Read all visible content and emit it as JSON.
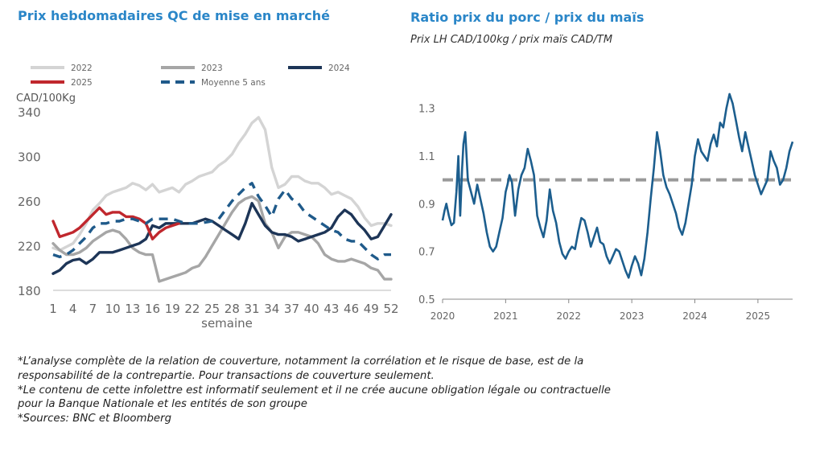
{
  "footnotes": [
    "*L’analyse complète de la relation de couverture, notamment la corrélation et le risque de base, est de la",
    "responsabilité de la contrepartie. Pour transactions de couverture seulement.",
    "*Le contenu de cette infolettre est informatif seulement et il ne crée aucune obligation légale ou contractuelle",
    "pour la Banque Nationale et les entités de son groupe",
    "*Sources: BNC et Bloomberg"
  ],
  "chart_data": [
    {
      "type": "line",
      "title": "Prix hebdomadaires QC de mise en marché",
      "xlabel": "semaine",
      "ylabel": "CAD/100Kg",
      "ylim": [
        180,
        340
      ],
      "xlim": [
        1,
        52
      ],
      "yticks": [
        180,
        220,
        260,
        300,
        340
      ],
      "xticks": [
        1,
        4,
        7,
        10,
        13,
        16,
        19,
        22,
        25,
        28,
        31,
        34,
        37,
        40,
        43,
        46,
        49,
        52
      ],
      "grid": false,
      "legend_position": "top",
      "series": [
        {
          "name": "2022",
          "color": "#d4d4d4",
          "dash": false,
          "x": [
            1,
            2,
            3,
            4,
            5,
            6,
            7,
            8,
            9,
            10,
            11,
            12,
            13,
            14,
            15,
            16,
            17,
            18,
            19,
            20,
            21,
            22,
            23,
            24,
            25,
            26,
            27,
            28,
            29,
            30,
            31,
            32,
            33,
            34,
            35,
            36,
            37,
            38,
            39,
            40,
            41,
            42,
            43,
            44,
            45,
            46,
            47,
            48,
            49,
            50,
            51,
            52
          ],
          "values": [
            218,
            216,
            219,
            222,
            230,
            240,
            252,
            258,
            265,
            268,
            270,
            272,
            276,
            274,
            270,
            275,
            268,
            270,
            272,
            268,
            275,
            278,
            282,
            284,
            286,
            292,
            296,
            302,
            312,
            320,
            330,
            335,
            324,
            290,
            272,
            275,
            282,
            282,
            278,
            276,
            276,
            272,
            266,
            268,
            265,
            262,
            255,
            245,
            238,
            240,
            240,
            238
          ]
        },
        {
          "name": "2023",
          "color": "#a6a6a6",
          "dash": false,
          "x": [
            1,
            2,
            3,
            4,
            5,
            6,
            7,
            8,
            9,
            10,
            11,
            12,
            13,
            14,
            15,
            16,
            17,
            18,
            19,
            20,
            21,
            22,
            23,
            24,
            25,
            26,
            27,
            28,
            29,
            30,
            31,
            32,
            33,
            34,
            35,
            36,
            37,
            38,
            39,
            40,
            41,
            42,
            43,
            44,
            45,
            46,
            47,
            48,
            49,
            50,
            51,
            52
          ],
          "values": [
            222,
            216,
            212,
            212,
            214,
            218,
            224,
            228,
            232,
            234,
            232,
            226,
            218,
            214,
            212,
            212,
            188,
            190,
            192,
            194,
            196,
            200,
            202,
            210,
            220,
            230,
            240,
            250,
            258,
            262,
            264,
            260,
            240,
            232,
            218,
            228,
            232,
            232,
            230,
            228,
            222,
            212,
            208,
            206,
            206,
            208,
            206,
            204,
            200,
            198,
            190,
            190
          ]
        },
        {
          "name": "2024",
          "color": "#1d3557",
          "dash": false,
          "x": [
            1,
            2,
            3,
            4,
            5,
            6,
            7,
            8,
            9,
            10,
            11,
            12,
            13,
            14,
            15,
            16,
            17,
            18,
            19,
            20,
            21,
            22,
            23,
            24,
            25,
            26,
            27,
            28,
            29,
            30,
            31,
            32,
            33,
            34,
            35,
            36,
            37,
            38,
            39,
            40,
            41,
            42,
            43,
            44,
            45,
            46,
            47,
            48,
            49,
            50,
            51,
            52
          ],
          "values": [
            195,
            198,
            204,
            207,
            208,
            204,
            208,
            214,
            214,
            214,
            216,
            218,
            220,
            222,
            226,
            238,
            236,
            240,
            240,
            240,
            240,
            240,
            242,
            244,
            242,
            238,
            234,
            230,
            226,
            240,
            258,
            248,
            238,
            232,
            230,
            230,
            228,
            224,
            226,
            228,
            230,
            232,
            236,
            246,
            252,
            248,
            240,
            234,
            226,
            228,
            238,
            248
          ]
        },
        {
          "name": "2025",
          "color": "#c0272d",
          "dash": false,
          "x": [
            1,
            2,
            3,
            4,
            5,
            6,
            7,
            8,
            9,
            10,
            11,
            12,
            13,
            14,
            15,
            16,
            17,
            18,
            19,
            20
          ],
          "values": [
            242,
            228,
            230,
            232,
            236,
            242,
            248,
            254,
            248,
            250,
            250,
            246,
            246,
            244,
            240,
            226,
            232,
            236,
            238,
            240
          ]
        },
        {
          "name": "Moyenne 5 ans",
          "color": "#1f5a8a",
          "dash": true,
          "x": [
            1,
            2,
            3,
            4,
            5,
            6,
            7,
            8,
            9,
            10,
            11,
            12,
            13,
            14,
            15,
            16,
            17,
            18,
            19,
            20,
            21,
            22,
            23,
            24,
            25,
            26,
            27,
            28,
            29,
            30,
            31,
            32,
            33,
            34,
            35,
            36,
            37,
            38,
            39,
            40,
            41,
            42,
            43,
            44,
            45,
            46,
            47,
            48,
            49,
            50,
            51,
            52
          ],
          "values": [
            212,
            210,
            212,
            216,
            222,
            228,
            236,
            240,
            240,
            242,
            242,
            244,
            244,
            242,
            240,
            244,
            244,
            244,
            244,
            242,
            240,
            240,
            240,
            241,
            242,
            244,
            252,
            260,
            266,
            272,
            276,
            264,
            256,
            246,
            262,
            270,
            262,
            258,
            250,
            246,
            242,
            238,
            234,
            232,
            226,
            224,
            224,
            218,
            212,
            208,
            212,
            212
          ]
        }
      ]
    },
    {
      "type": "line",
      "title": "Ratio prix du porc / prix du maïs",
      "subtitle": "Prix LH CAD/100kg / prix maïs CAD/TM",
      "xlabel": "",
      "ylabel": "",
      "ylim": [
        0.5,
        1.4
      ],
      "yticks": [
        0.5,
        0.7,
        0.9,
        1.1,
        1.3
      ],
      "ytick_labels": [
        "0.5",
        "0.7",
        "0.9",
        "1.1",
        "1.3"
      ],
      "xtick_labels": [
        "2020",
        "2021",
        "2022",
        "2023",
        "2024",
        "2025"
      ],
      "xlim": [
        2020.0,
        2025.55
      ],
      "grid": false,
      "reference_line": {
        "value": 1.0,
        "color": "#999999",
        "dash": true
      },
      "series": [
        {
          "name": "",
          "color": "#1c5e8e",
          "dash": false,
          "x": [
            2020.0,
            2020.03,
            2020.06,
            2020.1,
            2020.14,
            2020.18,
            2020.22,
            2020.25,
            2020.28,
            2020.31,
            2020.33,
            2020.36,
            2020.4,
            2020.45,
            2020.5,
            2020.55,
            2020.6,
            2020.65,
            2020.7,
            2020.75,
            2020.8,
            2020.85,
            2020.9,
            2020.95,
            2021.0,
            2021.03,
            2021.06,
            2021.1,
            2021.15,
            2021.2,
            2021.25,
            2021.3,
            2021.35,
            2021.4,
            2021.45,
            2021.5,
            2021.55,
            2021.6,
            2021.65,
            2021.7,
            2021.75,
            2021.8,
            2021.85,
            2021.9,
            2021.95,
            2022.0,
            2022.05,
            2022.1,
            2022.15,
            2022.2,
            2022.25,
            2022.3,
            2022.35,
            2022.4,
            2022.45,
            2022.5,
            2022.55,
            2022.6,
            2022.65,
            2022.7,
            2022.75,
            2022.8,
            2022.85,
            2022.9,
            2022.95,
            2023.0,
            2023.05,
            2023.1,
            2023.15,
            2023.2,
            2023.25,
            2023.3,
            2023.35,
            2023.4,
            2023.45,
            2023.5,
            2023.55,
            2023.6,
            2023.65,
            2023.7,
            2023.75,
            2023.8,
            2023.85,
            2023.9,
            2023.95,
            2024.0,
            2024.05,
            2024.1,
            2024.15,
            2024.2,
            2024.25,
            2024.3,
            2024.35,
            2024.4,
            2024.45,
            2024.5,
            2024.55,
            2024.6,
            2024.65,
            2024.7,
            2024.75,
            2024.8,
            2024.85,
            2024.9,
            2024.95,
            2025.0,
            2025.05,
            2025.1,
            2025.15,
            2025.2,
            2025.25,
            2025.3,
            2025.35,
            2025.4,
            2025.45,
            2025.5,
            2025.55
          ],
          "values": [
            0.83,
            0.87,
            0.9,
            0.85,
            0.81,
            0.82,
            0.95,
            1.1,
            0.85,
            1.05,
            1.15,
            1.2,
            1.0,
            0.95,
            0.9,
            0.98,
            0.92,
            0.86,
            0.78,
            0.72,
            0.7,
            0.72,
            0.78,
            0.84,
            0.95,
            0.98,
            1.02,
            0.99,
            0.85,
            0.96,
            1.02,
            1.05,
            1.13,
            1.08,
            1.02,
            0.85,
            0.8,
            0.76,
            0.83,
            0.96,
            0.87,
            0.82,
            0.74,
            0.69,
            0.67,
            0.7,
            0.72,
            0.71,
            0.78,
            0.84,
            0.83,
            0.78,
            0.72,
            0.76,
            0.8,
            0.74,
            0.73,
            0.68,
            0.65,
            0.68,
            0.71,
            0.7,
            0.66,
            0.62,
            0.59,
            0.64,
            0.68,
            0.65,
            0.6,
            0.67,
            0.78,
            0.92,
            1.05,
            1.2,
            1.12,
            1.02,
            0.97,
            0.94,
            0.9,
            0.86,
            0.8,
            0.77,
            0.82,
            0.9,
            0.98,
            1.1,
            1.17,
            1.12,
            1.1,
            1.08,
            1.15,
            1.19,
            1.14,
            1.24,
            1.22,
            1.3,
            1.36,
            1.32,
            1.25,
            1.18,
            1.12,
            1.2,
            1.14,
            1.08,
            1.02,
            0.98,
            0.94,
            0.97,
            1.0,
            1.12,
            1.08,
            1.05,
            0.98,
            1.0,
            1.05,
            1.12,
            1.16
          ]
        }
      ]
    }
  ]
}
